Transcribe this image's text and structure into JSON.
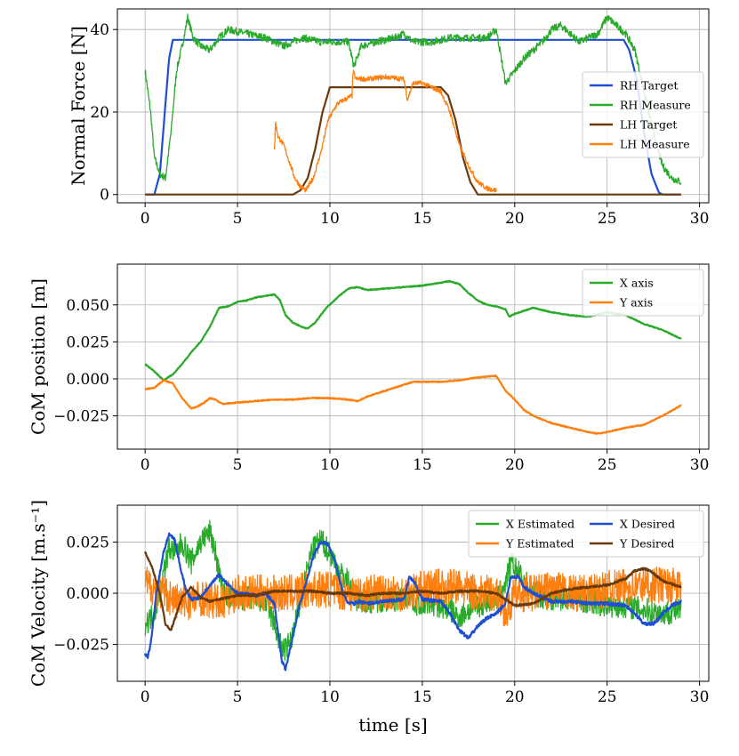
{
  "figure": {
    "xlabel": "time [s]"
  },
  "chart_data": [
    {
      "type": "line",
      "title": "",
      "xlabel": "",
      "ylabel": "Normal Force [N]",
      "xlim": [
        -1.5,
        30.5
      ],
      "ylim": [
        -2,
        45
      ],
      "xticks": [
        0,
        5,
        10,
        15,
        20,
        25,
        30
      ],
      "xtick_labels": [
        "0",
        "5",
        "10",
        "15",
        "20",
        "25",
        "30"
      ],
      "yticks": [
        0,
        20,
        40
      ],
      "ytick_labels": [
        "0",
        "20",
        "40"
      ],
      "grid": true,
      "legend_position": "right",
      "legend_columns": 1,
      "series": [
        {
          "name": "RH Target",
          "color": "#1f4fd1",
          "noise": 0,
          "x": [
            0,
            0.5,
            0.8,
            1.1,
            1.3,
            1.5,
            25.9,
            26.2,
            26.6,
            27.0,
            27.4,
            27.8,
            28.0,
            29
          ],
          "y": [
            0,
            0,
            5,
            22,
            33,
            37.5,
            37.5,
            35,
            28,
            15,
            5,
            0.5,
            0,
            0
          ]
        },
        {
          "name": "RH Measure",
          "color": "#2aaa2a",
          "noise": 0.9,
          "x": [
            0,
            0.3,
            0.5,
            0.8,
            1.1,
            1.4,
            1.7,
            2.1,
            2.3,
            2.6,
            3.0,
            3.5,
            4.0,
            4.5,
            5.5,
            6.5,
            7.5,
            8.5,
            9.5,
            10.5,
            11.0,
            11.3,
            11.7,
            12.5,
            13.5,
            14.0,
            14.5,
            15.5,
            16.5,
            17.5,
            18.5,
            19.0,
            19.2,
            19.5,
            20.0,
            20.5,
            21.5,
            22.0,
            22.5,
            23.5,
            24.5,
            25.0,
            25.5,
            26.0,
            26.5,
            27.0,
            27.5,
            28.0,
            28.5,
            29
          ],
          "y": [
            30,
            20,
            9,
            5,
            4,
            15,
            30,
            38,
            43,
            38,
            36,
            35,
            38,
            40,
            39,
            38,
            36,
            38,
            37,
            37,
            37,
            31,
            36,
            37,
            38,
            39,
            37,
            37,
            38,
            38,
            38,
            40,
            35,
            27,
            30,
            33,
            37,
            40,
            41,
            37,
            39,
            43,
            41,
            39,
            35,
            25,
            15,
            7,
            4,
            3
          ]
        },
        {
          "name": "LH Target",
          "color": "#6b3a0c",
          "noise": 0,
          "x": [
            0,
            8.0,
            8.4,
            8.8,
            9.2,
            9.6,
            10.0,
            16.0,
            16.4,
            16.8,
            17.2,
            17.6,
            18.0,
            29
          ],
          "y": [
            0,
            0,
            1,
            4,
            11,
            20,
            26,
            26,
            24,
            18,
            9,
            3,
            0,
            0
          ]
        },
        {
          "name": "LH Measure",
          "color": "#ff7f0e",
          "noise": 0.6,
          "x": [
            7.0,
            7.05,
            7.2,
            7.5,
            7.8,
            8.1,
            8.4,
            8.7,
            9.1,
            9.5,
            9.9,
            10.4,
            10.8,
            11.2,
            11.25,
            11.4,
            12.0,
            13.0,
            14.0,
            14.2,
            14.5,
            15.0,
            15.5,
            16.0,
            16.5,
            17.0,
            17.5,
            18.0,
            18.5,
            19.0
          ],
          "y": [
            10.5,
            17.5,
            14,
            12,
            8,
            4,
            2,
            1,
            4,
            10,
            18,
            22,
            23,
            24,
            30,
            28,
            28,
            28.5,
            28,
            23,
            27,
            27,
            26,
            25,
            20,
            12,
            7,
            3,
            1.5,
            1
          ]
        }
      ]
    },
    {
      "type": "line",
      "title": "",
      "xlabel": "",
      "ylabel": "CoM position [m]",
      "xlim": [
        -1.5,
        30.5
      ],
      "ylim": [
        -0.0475,
        0.0775
      ],
      "xticks": [
        0,
        5,
        10,
        15,
        20,
        25,
        30
      ],
      "xtick_labels": [
        "0",
        "5",
        "10",
        "15",
        "20",
        "25",
        "30"
      ],
      "yticks": [
        -0.025,
        0.0,
        0.025,
        0.05
      ],
      "ytick_labels": [
        "−0.025",
        "0.000",
        "0.025",
        "0.050"
      ],
      "grid": true,
      "legend_position": "top-right",
      "legend_columns": 1,
      "series": [
        {
          "name": "X axis",
          "color": "#2aaa2a",
          "noise": 0.0003,
          "x": [
            0,
            0.5,
            1.0,
            1.5,
            2.0,
            2.5,
            3.0,
            3.5,
            4.0,
            4.5,
            5.0,
            5.5,
            6.0,
            6.5,
            7.0,
            7.3,
            7.6,
            8.0,
            8.5,
            8.8,
            9.2,
            9.8,
            10.5,
            11.0,
            11.5,
            12.0,
            13.0,
            14.0,
            15.0,
            16.0,
            16.5,
            17.0,
            17.5,
            18.0,
            18.5,
            19.0,
            19.5,
            19.7,
            20.0,
            20.5,
            21.0,
            22.0,
            23.0,
            24.0,
            25.0,
            26.0,
            27.0,
            28.0,
            29.0
          ],
          "y": [
            0.01,
            0.005,
            -0.001,
            0.003,
            0.01,
            0.018,
            0.025,
            0.035,
            0.048,
            0.049,
            0.052,
            0.053,
            0.055,
            0.056,
            0.057,
            0.053,
            0.043,
            0.038,
            0.035,
            0.034,
            0.038,
            0.048,
            0.056,
            0.061,
            0.062,
            0.06,
            0.061,
            0.062,
            0.063,
            0.065,
            0.066,
            0.064,
            0.058,
            0.053,
            0.05,
            0.049,
            0.047,
            0.042,
            0.044,
            0.046,
            0.048,
            0.045,
            0.043,
            0.042,
            0.045,
            0.043,
            0.037,
            0.033,
            0.027
          ]
        },
        {
          "name": "Y axis",
          "color": "#ff7f0e",
          "noise": 0.0003,
          "x": [
            0,
            0.5,
            1.0,
            1.5,
            2.0,
            2.5,
            2.8,
            3.2,
            3.5,
            3.8,
            4.2,
            5.0,
            6.0,
            7.0,
            8.0,
            9.0,
            10.0,
            11.0,
            11.5,
            12.0,
            13.0,
            14.0,
            14.5,
            15.0,
            16.0,
            17.0,
            18.0,
            19.0,
            19.5,
            20.0,
            20.5,
            21.0,
            22.0,
            23.0,
            24.0,
            24.5,
            25.0,
            26.0,
            27.0,
            28.0,
            29.0
          ],
          "y": [
            -0.007,
            -0.006,
            -0.001,
            -0.003,
            -0.013,
            -0.02,
            -0.019,
            -0.016,
            -0.013,
            -0.014,
            -0.017,
            -0.016,
            -0.015,
            -0.014,
            -0.014,
            -0.013,
            -0.013,
            -0.014,
            -0.015,
            -0.012,
            -0.008,
            -0.004,
            -0.002,
            -0.002,
            -0.002,
            -0.001,
            0.001,
            0.002,
            -0.008,
            -0.014,
            -0.021,
            -0.025,
            -0.03,
            -0.033,
            -0.036,
            -0.037,
            -0.036,
            -0.033,
            -0.031,
            -0.025,
            -0.018
          ]
        }
      ]
    },
    {
      "type": "line",
      "title": "",
      "xlabel": "time [s]",
      "ylabel": "CoM Velocity [m.s⁻¹]",
      "xlim": [
        -1.5,
        30.5
      ],
      "ylim": [
        -0.043,
        0.043
      ],
      "xticks": [
        0,
        5,
        10,
        15,
        20,
        25,
        30
      ],
      "xtick_labels": [
        "0",
        "5",
        "10",
        "15",
        "20",
        "25",
        "30"
      ],
      "yticks": [
        -0.025,
        0.0,
        0.025
      ],
      "ytick_labels": [
        "−0.025",
        "0.000",
        "0.025"
      ],
      "grid": true,
      "legend_position": "top-right",
      "legend_columns": 2,
      "series": [
        {
          "name": "X Estimated",
          "color": "#2aaa2a",
          "noise": 0.006,
          "x": [
            0,
            0.5,
            1.0,
            1.3,
            1.7,
            2.0,
            2.5,
            3.0,
            3.5,
            3.8,
            4.2,
            4.8,
            5.5,
            6.5,
            7.0,
            7.3,
            7.6,
            8.0,
            8.5,
            9.0,
            9.5,
            10.0,
            10.5,
            11.0,
            11.2,
            11.5,
            12.0,
            13.0,
            14.0,
            14.3,
            14.6,
            15.5,
            16.5,
            17.0,
            17.5,
            18.5,
            19.0,
            19.5,
            19.8,
            20.2,
            21.0,
            22.0,
            23.0,
            24.0,
            25.0,
            26.0,
            27.0,
            28.0,
            29.0
          ],
          "y": [
            -0.015,
            -0.01,
            0.01,
            0.022,
            0.02,
            0.025,
            0.015,
            0.025,
            0.03,
            0.02,
            0.0,
            -0.003,
            -0.002,
            -0.004,
            -0.015,
            -0.025,
            -0.028,
            -0.02,
            0.0,
            0.02,
            0.026,
            0.02,
            0.01,
            0.006,
            0.0,
            -0.003,
            -0.004,
            -0.003,
            -0.003,
            0.0,
            -0.005,
            -0.005,
            -0.008,
            -0.012,
            -0.008,
            -0.004,
            -0.003,
            0.005,
            0.015,
            0.01,
            0.0,
            -0.003,
            -0.002,
            -0.004,
            -0.006,
            -0.006,
            -0.008,
            -0.01,
            -0.008
          ]
        },
        {
          "name": "Y Estimated",
          "color": "#ff7f0e",
          "noise": 0.009,
          "x": [
            0,
            1,
            2,
            3,
            4,
            5,
            6,
            7,
            8,
            9,
            10,
            11,
            12,
            13,
            14,
            15,
            16,
            17,
            18,
            19,
            19.6,
            20,
            21,
            22,
            23,
            24,
            25,
            26,
            27,
            28,
            29
          ],
          "y": [
            0.005,
            0.0,
            -0.005,
            -0.002,
            -0.005,
            0.0,
            0.0,
            0.0,
            0.0,
            0.002,
            0.002,
            0.0,
            0.0,
            0.001,
            0.0,
            0.002,
            0.003,
            0.003,
            0.0,
            0.0,
            -0.01,
            0.0,
            0.0,
            0.002,
            0.0,
            0.0,
            0.002,
            0.003,
            0.004,
            0.004,
            0.003
          ]
        },
        {
          "name": "X Desired",
          "color": "#1f4fd1",
          "noise": 0.0008,
          "x": [
            0,
            0.15,
            0.3,
            0.6,
            1.0,
            1.3,
            1.6,
            1.9,
            2.2,
            2.5,
            3.0,
            3.5,
            4.0,
            4.5,
            5.0,
            6.0,
            6.5,
            7.0,
            7.2,
            7.4,
            7.6,
            7.9,
            8.3,
            8.7,
            9.1,
            9.5,
            9.9,
            10.3,
            10.7,
            11.0,
            11.3,
            11.6,
            12.0,
            13.0,
            14.0,
            14.3,
            14.6,
            15.0,
            16.0,
            16.5,
            17.0,
            17.5,
            18.0,
            18.5,
            19.0,
            19.5,
            19.8,
            20.2,
            20.5,
            21.0,
            22.0,
            23.0,
            24.0,
            25.0,
            26.0,
            26.5,
            27.0,
            27.5,
            28.0,
            28.5,
            29.0
          ],
          "y": [
            -0.03,
            -0.031,
            -0.025,
            0.0,
            0.02,
            0.029,
            0.026,
            0.013,
            0.002,
            -0.003,
            -0.002,
            0.004,
            0.009,
            0.004,
            0.0,
            -0.001,
            0.0,
            -0.005,
            -0.02,
            -0.033,
            -0.037,
            -0.025,
            -0.008,
            0.005,
            0.018,
            0.025,
            0.024,
            0.015,
            0.0,
            -0.005,
            -0.005,
            -0.004,
            -0.005,
            -0.004,
            -0.003,
            0.008,
            0.005,
            -0.003,
            -0.004,
            -0.01,
            -0.018,
            -0.022,
            -0.016,
            -0.012,
            -0.01,
            -0.005,
            0.008,
            0.008,
            0.003,
            0.0,
            -0.004,
            -0.004,
            -0.005,
            -0.005,
            -0.006,
            -0.01,
            -0.015,
            -0.015,
            -0.01,
            -0.006,
            -0.004
          ]
        },
        {
          "name": "Y Desired",
          "color": "#6b3a0c",
          "noise": 0.0005,
          "x": [
            0,
            0.1,
            0.4,
            0.8,
            1.1,
            1.4,
            1.7,
            2.0,
            2.5,
            3.0,
            3.5,
            4.0,
            5.0,
            6.0,
            7.0,
            8.0,
            9.0,
            10.0,
            11.0,
            12.0,
            13.0,
            14.0,
            15.0,
            16.0,
            17.0,
            18.0,
            19.0,
            19.5,
            20.0,
            21.0,
            22.0,
            23.0,
            24.0,
            25.0,
            26.0,
            26.5,
            27.0,
            27.3,
            27.6,
            28.0,
            29.0
          ],
          "y": [
            0.02,
            0.018,
            0.012,
            0.0,
            -0.015,
            -0.018,
            -0.01,
            -0.002,
            0.003,
            -0.002,
            -0.004,
            -0.003,
            -0.001,
            -0.001,
            0.001,
            0.001,
            0.001,
            0.0,
            0.0,
            -0.001,
            0.0,
            0.0,
            0.001,
            0.0,
            0.001,
            0.001,
            0.0,
            -0.003,
            -0.006,
            -0.005,
            0.0,
            0.002,
            0.003,
            0.004,
            0.007,
            0.011,
            0.012,
            0.011,
            0.009,
            0.006,
            0.003
          ]
        }
      ]
    }
  ]
}
